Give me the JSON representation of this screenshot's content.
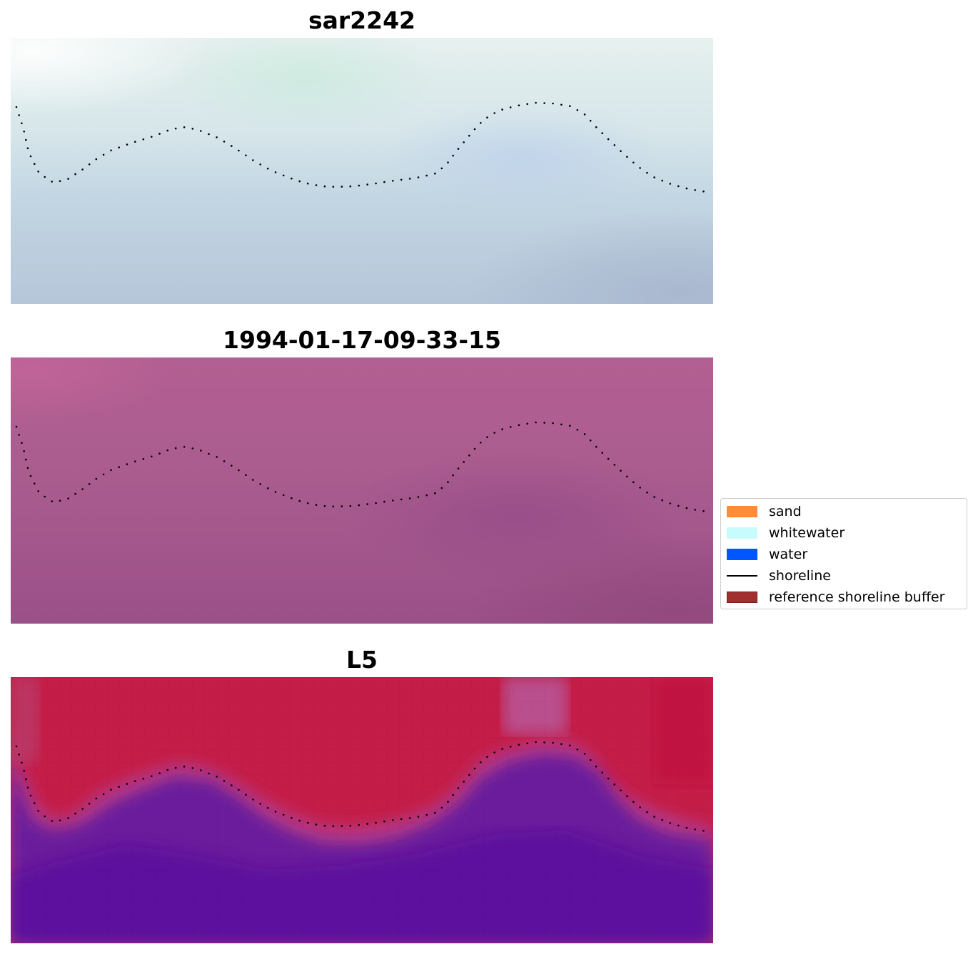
{
  "panels": [
    {
      "title": "sar2242"
    },
    {
      "title": "1994-01-17-09-33-15"
    },
    {
      "title": "L5"
    }
  ],
  "legend": {
    "items": [
      {
        "label": "sand",
        "kind": "patch",
        "color": "#ff8c3a"
      },
      {
        "label": "whitewater",
        "kind": "patch",
        "color": "#c8fcfc"
      },
      {
        "label": "water",
        "kind": "patch",
        "color": "#0057ff"
      },
      {
        "label": "shoreline",
        "kind": "line",
        "color": "#000000"
      },
      {
        "label": "reference shoreline buffer",
        "kind": "patch",
        "color": "#a03030"
      }
    ]
  }
}
